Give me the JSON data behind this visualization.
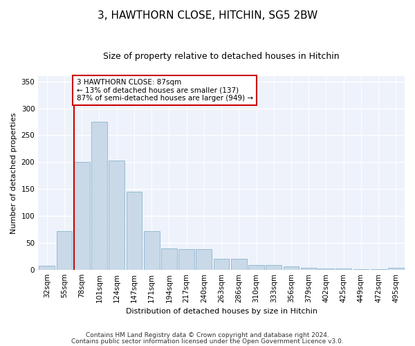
{
  "title": "3, HAWTHORN CLOSE, HITCHIN, SG5 2BW",
  "subtitle": "Size of property relative to detached houses in Hitchin",
  "xlabel": "Distribution of detached houses by size in Hitchin",
  "ylabel": "Number of detached properties",
  "categories": [
    "32sqm",
    "55sqm",
    "78sqm",
    "101sqm",
    "124sqm",
    "147sqm",
    "171sqm",
    "194sqm",
    "217sqm",
    "240sqm",
    "263sqm",
    "286sqm",
    "310sqm",
    "333sqm",
    "356sqm",
    "379sqm",
    "402sqm",
    "425sqm",
    "449sqm",
    "472sqm",
    "495sqm"
  ],
  "values": [
    7,
    72,
    200,
    275,
    203,
    145,
    72,
    40,
    38,
    38,
    20,
    20,
    8,
    8,
    6,
    4,
    2,
    2,
    1,
    1,
    3
  ],
  "bar_color": "#c9d9e8",
  "bar_edge_color": "#8ab4cc",
  "vline_x_index": 2,
  "vline_color": "#cc0000",
  "annotation_text": "3 HAWTHORN CLOSE: 87sqm\n← 13% of detached houses are smaller (137)\n87% of semi-detached houses are larger (949) →",
  "annotation_box_color": "#ffffff",
  "annotation_box_edge": "#cc0000",
  "ylim": [
    0,
    360
  ],
  "yticks": [
    0,
    50,
    100,
    150,
    200,
    250,
    300,
    350
  ],
  "footer1": "Contains HM Land Registry data © Crown copyright and database right 2024.",
  "footer2": "Contains public sector information licensed under the Open Government Licence v3.0.",
  "bg_color": "#eef2fb",
  "title_fontsize": 11,
  "subtitle_fontsize": 9,
  "axis_fontsize": 8,
  "tick_fontsize": 7.5,
  "annotation_fontsize": 7.5,
  "footer_fontsize": 6.5
}
